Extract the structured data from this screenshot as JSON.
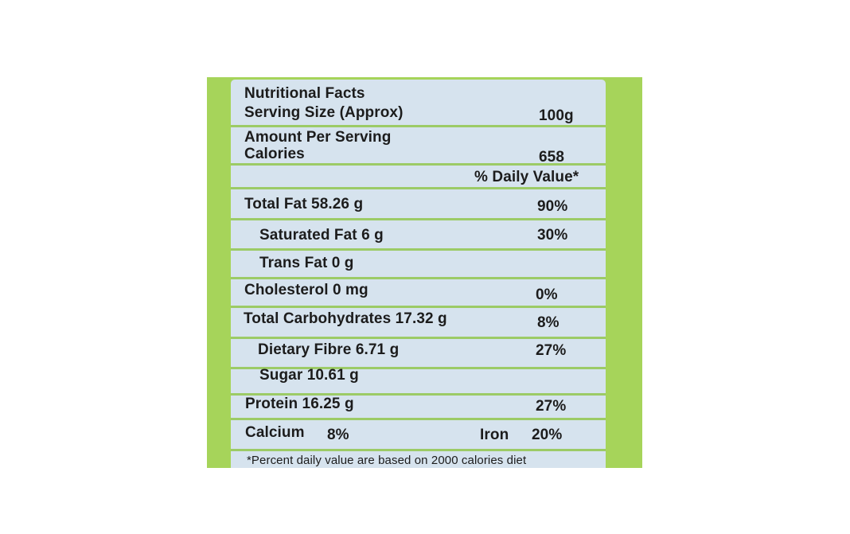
{
  "label": {
    "title": "Nutritional Facts",
    "serving_label": "Serving Size (Approx)",
    "serving_value": "100g",
    "amount_label": "Amount Per Serving",
    "calories_label": "Calories",
    "calories_value": "658",
    "daily_value_header": "% Daily Value*",
    "nutrients": [
      {
        "label": "Total Fat  58.26 g",
        "dv": "90%"
      },
      {
        "label": "Saturated Fat  6 g",
        "dv": "30%"
      },
      {
        "label": "Trans Fat 0 g",
        "dv": ""
      },
      {
        "label": "Cholesterol 0 mg",
        "dv": "0%"
      },
      {
        "label": "Total Carbohydrates 17.32 g",
        "dv": "8%"
      },
      {
        "label": "Dietary Fibre 6.71 g",
        "dv": "27%"
      },
      {
        "label": "Sugar 10.61 g",
        "dv": ""
      },
      {
        "label": "Protein 16.25 g",
        "dv": "27%"
      }
    ],
    "calcium_label": "Calcium",
    "calcium_value": "8%",
    "iron_label": "Iron",
    "iron_value": "20%",
    "footnote": "*Percent daily value are based on 2000 calories diet"
  },
  "colors": {
    "package_green": "#a6d45a",
    "panel_blue": "#d6e3ee",
    "divider_green": "#9ccb66"
  }
}
